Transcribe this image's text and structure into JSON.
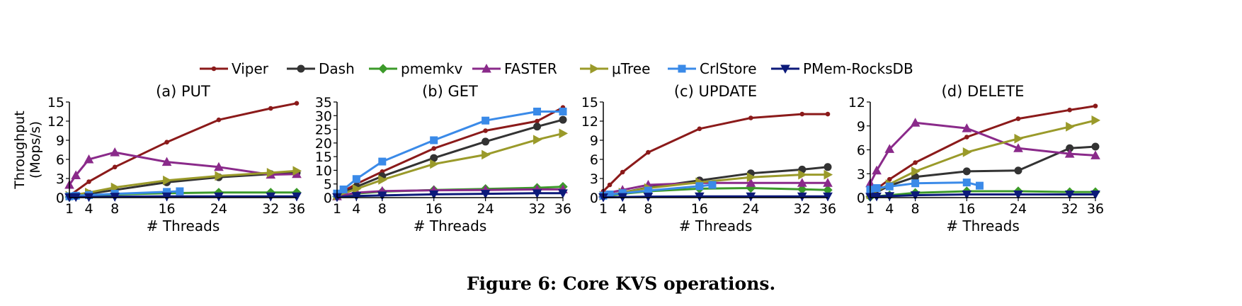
{
  "caption": "Figure 6: Core KVS operations.",
  "legend": [
    {
      "name": "Viper",
      "color": "#8b1a1a",
      "marker": "dot"
    },
    {
      "name": "Dash",
      "color": "#333333",
      "marker": "circle"
    },
    {
      "name": "pmemkv",
      "color": "#3c9a2a",
      "marker": "diamond"
    },
    {
      "name": "FASTER",
      "color": "#8a2a8a",
      "marker": "triangle-up"
    },
    {
      "name": "μTree",
      "color": "#9a9a2a",
      "marker": "triangle-right"
    },
    {
      "name": "CrlStore",
      "color": "#3a8ae8",
      "marker": "square"
    },
    {
      "name": "PMem-RocksDB",
      "color": "#0c1a7a",
      "marker": "triangle-down"
    }
  ],
  "chart_data": [
    {
      "type": "line",
      "title": "(a) PUT",
      "xlabel": "# Threads",
      "ylabel": "Throughput (Mops/s)",
      "xticks": [
        1,
        4,
        8,
        16,
        24,
        32,
        36
      ],
      "yticks": [
        0,
        3,
        6,
        9,
        12,
        15
      ],
      "xlim": [
        1,
        36
      ],
      "ylim": [
        0,
        15
      ],
      "series": [
        {
          "name": "Viper",
          "x": [
            1,
            4,
            8,
            16,
            24,
            32,
            36
          ],
          "y": [
            0.3,
            2.5,
            4.8,
            8.7,
            12.2,
            14.0,
            14.8
          ]
        },
        {
          "name": "Dash",
          "x": [
            1,
            4,
            8,
            16,
            24,
            32,
            36
          ],
          "y": [
            0.2,
            0.6,
            1.2,
            2.4,
            3.2,
            3.7,
            3.9
          ]
        },
        {
          "name": "pmemkv",
          "x": [
            1,
            4,
            8,
            16,
            24,
            32,
            36
          ],
          "y": [
            0.1,
            0.3,
            0.5,
            0.7,
            0.8,
            0.8,
            0.8
          ]
        },
        {
          "name": "FASTER",
          "x": [
            1,
            2,
            4,
            8,
            16,
            24,
            32,
            36
          ],
          "y": [
            2.0,
            3.5,
            6.0,
            7.1,
            5.6,
            4.8,
            3.6,
            3.7
          ]
        },
        {
          "name": "μTree",
          "x": [
            1,
            4,
            8,
            16,
            24,
            32,
            36
          ],
          "y": [
            0.3,
            0.8,
            1.6,
            2.7,
            3.4,
            3.9,
            4.2
          ]
        },
        {
          "name": "CrlStore",
          "x": [
            1,
            2,
            4,
            8,
            16,
            18
          ],
          "y": [
            0.2,
            0.3,
            0.4,
            0.6,
            0.9,
            1.0
          ]
        },
        {
          "name": "PMem-RocksDB",
          "x": [
            1,
            2,
            4,
            8,
            16,
            24,
            32,
            36
          ],
          "y": [
            0.05,
            0.1,
            0.1,
            0.15,
            0.2,
            0.2,
            0.2,
            0.2
          ]
        }
      ]
    },
    {
      "type": "line",
      "title": "(b) GET",
      "xlabel": "# Threads",
      "xticks": [
        1,
        4,
        8,
        16,
        24,
        32,
        36
      ],
      "yticks": [
        0,
        5,
        10,
        15,
        20,
        25,
        30,
        35
      ],
      "xlim": [
        1,
        36
      ],
      "ylim": [
        0,
        35
      ],
      "series": [
        {
          "name": "Viper",
          "x": [
            1,
            4,
            8,
            16,
            24,
            32,
            36
          ],
          "y": [
            1.0,
            5.0,
            9.5,
            18.0,
            24.5,
            28.0,
            33.0
          ]
        },
        {
          "name": "Dash",
          "x": [
            1,
            4,
            8,
            16,
            24,
            32,
            36
          ],
          "y": [
            0.8,
            4.0,
            7.8,
            14.5,
            20.5,
            26.0,
            28.5
          ]
        },
        {
          "name": "pmemkv",
          "x": [
            1,
            4,
            8,
            16,
            24,
            32,
            36
          ],
          "y": [
            0.4,
            1.5,
            2.2,
            2.8,
            3.2,
            3.6,
            4.0
          ]
        },
        {
          "name": "FASTER",
          "x": [
            1,
            4,
            8,
            16,
            24,
            32,
            36
          ],
          "y": [
            0.5,
            1.8,
            2.4,
            2.7,
            2.8,
            3.0,
            3.0
          ]
        },
        {
          "name": "μTree",
          "x": [
            1,
            4,
            8,
            16,
            24,
            32,
            36
          ],
          "y": [
            0.7,
            3.2,
            6.5,
            12.3,
            15.7,
            21.2,
            23.5
          ]
        },
        {
          "name": "CrlStore",
          "x": [
            1,
            2,
            4,
            8,
            16,
            24,
            32,
            36
          ],
          "y": [
            1.5,
            3.0,
            6.8,
            13.2,
            21.0,
            28.2,
            31.5,
            31.5
          ]
        },
        {
          "name": "PMem-RocksDB",
          "x": [
            1,
            4,
            8,
            16,
            24,
            32,
            36
          ],
          "y": [
            0.2,
            0.6,
            0.8,
            1.2,
            1.4,
            1.6,
            1.6
          ]
        }
      ]
    },
    {
      "type": "line",
      "title": "(c) UPDATE",
      "xlabel": "# Threads",
      "xticks": [
        1,
        4,
        8,
        16,
        24,
        32,
        36
      ],
      "yticks": [
        0,
        3,
        6,
        9,
        12,
        15
      ],
      "xlim": [
        1,
        36
      ],
      "ylim": [
        0,
        15
      ],
      "series": [
        {
          "name": "Viper",
          "x": [
            1,
            2,
            4,
            8,
            16,
            24,
            32,
            36
          ],
          "y": [
            1.0,
            2.0,
            4.0,
            7.1,
            10.8,
            12.5,
            13.1,
            13.1
          ]
        },
        {
          "name": "Dash",
          "x": [
            1,
            4,
            8,
            16,
            24,
            32,
            36
          ],
          "y": [
            0.3,
            0.8,
            1.6,
            2.7,
            3.8,
            4.4,
            4.8
          ]
        },
        {
          "name": "pmemkv",
          "x": [
            1,
            4,
            8,
            16,
            24,
            32,
            36
          ],
          "y": [
            0.2,
            0.6,
            1.0,
            1.4,
            1.5,
            1.3,
            1.2
          ]
        },
        {
          "name": "FASTER",
          "x": [
            1,
            4,
            8,
            16,
            24,
            32,
            36
          ],
          "y": [
            0.6,
            1.2,
            2.0,
            2.3,
            2.3,
            2.3,
            2.3
          ]
        },
        {
          "name": "μTree",
          "x": [
            1,
            4,
            8,
            16,
            24,
            32,
            36
          ],
          "y": [
            0.3,
            0.8,
            1.5,
            2.4,
            3.2,
            3.6,
            3.6
          ]
        },
        {
          "name": "CrlStore",
          "x": [
            1,
            2,
            4,
            8,
            16,
            18
          ],
          "y": [
            0.3,
            0.5,
            0.7,
            1.1,
            1.8,
            2.0
          ]
        },
        {
          "name": "PMem-RocksDB",
          "x": [
            1,
            4,
            8,
            16,
            24,
            32,
            36
          ],
          "y": [
            0.05,
            0.1,
            0.15,
            0.2,
            0.2,
            0.2,
            0.2
          ]
        }
      ]
    },
    {
      "type": "line",
      "title": "(d) DELETE",
      "xlabel": "# Threads",
      "xticks": [
        1,
        4,
        8,
        16,
        24,
        32,
        36
      ],
      "yticks": [
        0,
        3,
        6,
        9,
        12
      ],
      "xlim": [
        1,
        36
      ],
      "ylim": [
        0,
        12
      ],
      "series": [
        {
          "name": "Viper",
          "x": [
            1,
            4,
            8,
            16,
            24,
            32,
            36
          ],
          "y": [
            0.5,
            2.3,
            4.4,
            7.6,
            9.9,
            11.0,
            11.5
          ]
        },
        {
          "name": "Dash",
          "x": [
            1,
            4,
            8,
            16,
            24,
            32,
            36
          ],
          "y": [
            0.3,
            1.5,
            2.6,
            3.3,
            3.4,
            6.2,
            6.4
          ]
        },
        {
          "name": "pmemkv",
          "x": [
            1,
            4,
            8,
            16,
            24,
            32,
            36
          ],
          "y": [
            0.1,
            0.3,
            0.6,
            0.8,
            0.8,
            0.7,
            0.7
          ]
        },
        {
          "name": "FASTER",
          "x": [
            1,
            2,
            4,
            8,
            16,
            24,
            32,
            36
          ],
          "y": [
            1.8,
            3.4,
            6.1,
            9.4,
            8.7,
            6.2,
            5.5,
            5.3
          ]
        },
        {
          "name": "μTree",
          "x": [
            1,
            4,
            8,
            16,
            24,
            32,
            36
          ],
          "y": [
            0.4,
            1.7,
            3.3,
            5.7,
            7.4,
            8.9,
            9.7
          ]
        },
        {
          "name": "CrlStore",
          "x": [
            1,
            2,
            4,
            8,
            16,
            18
          ],
          "y": [
            1.0,
            1.2,
            1.4,
            1.8,
            1.9,
            1.5
          ]
        },
        {
          "name": "PMem-RocksDB",
          "x": [
            1,
            2,
            4,
            8,
            16,
            24,
            32,
            36
          ],
          "y": [
            0.1,
            0.15,
            0.2,
            0.3,
            0.4,
            0.4,
            0.4,
            0.4
          ]
        }
      ]
    }
  ]
}
